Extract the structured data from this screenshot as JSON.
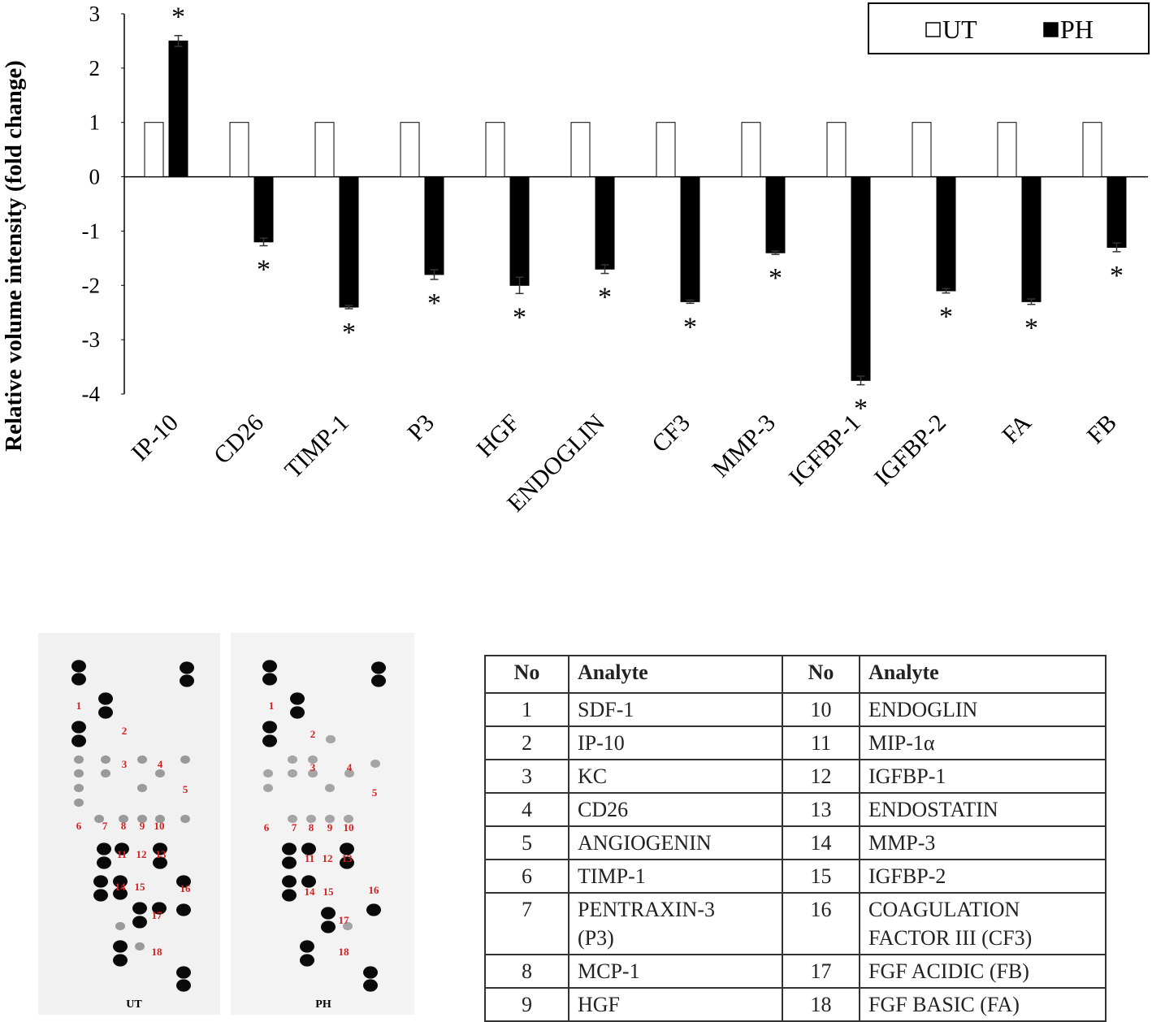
{
  "chart_data": {
    "type": "bar",
    "y_label": "Relative volume intensity (fold change)",
    "categories": [
      "IP-10",
      "CD26",
      "TIMP-1",
      "P3",
      "HGF",
      "ENDOGLIN",
      "CF3",
      "MMP-3",
      "IGFBP-1",
      "IGFBP-2",
      "FA",
      "FB"
    ],
    "series": [
      {
        "name": "UT",
        "color": "#ffffff",
        "values": [
          1,
          1,
          1,
          1,
          1,
          1,
          1,
          1,
          1,
          1,
          1,
          1
        ]
      },
      {
        "name": "PH",
        "color": "#000000",
        "values": [
          2.5,
          -1.2,
          -2.4,
          -1.8,
          -2.0,
          -1.7,
          -2.3,
          -1.4,
          -3.75,
          -2.1,
          -2.3,
          -1.3
        ],
        "errors": [
          0.1,
          0.07,
          0.03,
          0.09,
          0.15,
          0.08,
          0.03,
          0.03,
          0.08,
          0.04,
          0.05,
          0.08
        ],
        "annotations": [
          "*",
          "*",
          "*",
          "*",
          "*",
          "*",
          "*",
          "*",
          "*",
          "*",
          "*",
          "*"
        ]
      }
    ],
    "ylim": [
      -4,
      3
    ],
    "yticks": [
      -4,
      -3,
      -2,
      -1,
      0,
      1,
      2,
      3
    ],
    "legend": "top-right"
  },
  "blots": [
    {
      "caption": "UT",
      "labels": [
        "1",
        "2",
        "3",
        "4",
        "5",
        "6",
        "7",
        "8",
        "9",
        "10",
        "11",
        "12",
        "13",
        "14",
        "15",
        "16",
        "17",
        "18"
      ]
    },
    {
      "caption": "PH",
      "labels": [
        "1",
        "2",
        "3",
        "4",
        "5",
        "6",
        "7",
        "8",
        "9",
        "10",
        "11",
        "12",
        "13",
        "14",
        "15",
        "16",
        "17",
        "18"
      ]
    }
  ],
  "table": {
    "header": [
      "No",
      "Analyte",
      "No",
      "Analyte"
    ],
    "rows": [
      [
        "1",
        "SDF-1",
        "10",
        "ENDOGLIN"
      ],
      [
        "2",
        "IP-10",
        "11",
        "MIP-1α"
      ],
      [
        "3",
        "KC",
        "12",
        "IGFBP-1"
      ],
      [
        "4",
        "CD26",
        "13",
        "ENDOSTATIN"
      ],
      [
        "5",
        "ANGIOGENIN",
        "14",
        "MMP-3"
      ],
      [
        "6",
        "TIMP-1",
        "15",
        "IGFBP-2"
      ],
      [
        "7",
        "PENTRAXIN-3\n(P3)",
        "16",
        "COAGULATION\nFACTOR III (CF3)"
      ],
      [
        "8",
        "MCP-1",
        "17",
        "FGF ACIDIC (FB)"
      ],
      [
        "9",
        "HGF",
        "18",
        "FGF BASIC (FA)"
      ]
    ]
  }
}
